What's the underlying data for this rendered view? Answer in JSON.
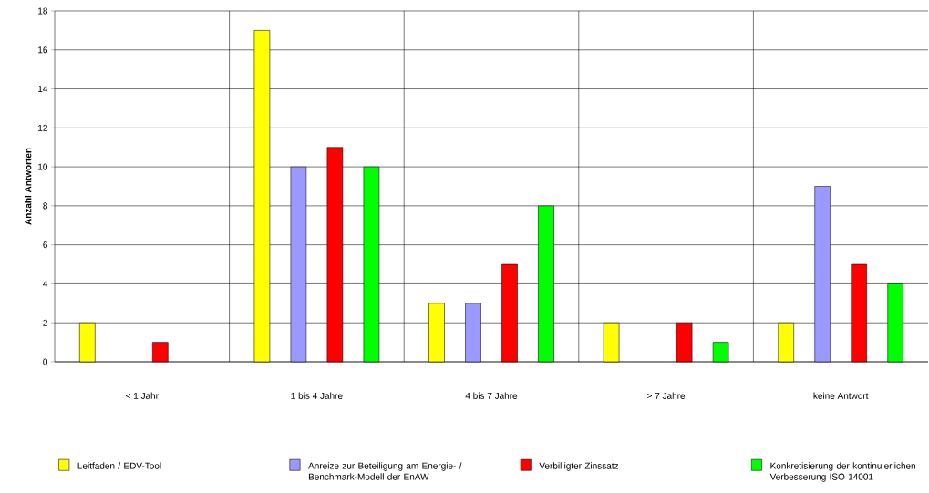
{
  "chart_data": {
    "type": "bar",
    "ylabel": "Anzahl Antworten",
    "categories": [
      "< 1 Jahr",
      "1 bis 4 Jahre",
      "4 bis 7 Jahre",
      "> 7 Jahre",
      "keine Antwort"
    ],
    "series": [
      {
        "name": "Leitfaden / EDV-Tool",
        "color": "#ffff00",
        "values": [
          2,
          17,
          3,
          2,
          2
        ]
      },
      {
        "name": "Anreize zur Beteiligung am Energie- / Benchmark-Modell der EnAW",
        "color": "#9999ff",
        "values": [
          null,
          10,
          3,
          null,
          9
        ]
      },
      {
        "name": "Verbilligter Zinssatz",
        "color": "#ff0000",
        "values": [
          1,
          11,
          5,
          2,
          5
        ]
      },
      {
        "name": "Konkretisierung der kontinuierlichen Verbesserung ISO 14001",
        "color": "#00ff00",
        "values": [
          null,
          10,
          8,
          1,
          4
        ]
      }
    ],
    "ylim": [
      0,
      18
    ],
    "yticks": [
      0,
      2,
      4,
      6,
      8,
      10,
      12,
      14,
      16,
      18
    ],
    "grid": "y",
    "legend": "bottom"
  }
}
